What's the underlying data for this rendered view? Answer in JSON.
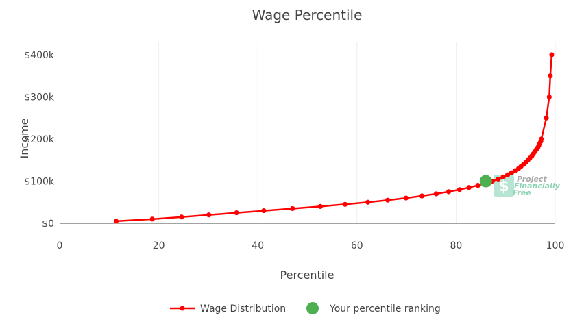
{
  "chart_data": {
    "type": "line",
    "title": "Wage Percentile",
    "xlabel": "Percentile",
    "ylabel": "Income",
    "xlim": [
      0,
      100
    ],
    "ylim": [
      0,
      400000
    ],
    "x_ticks": [
      0,
      20,
      40,
      60,
      80,
      100
    ],
    "y_ticks": [
      0,
      100000,
      200000,
      300000,
      400000
    ],
    "x_tick_labels": [
      "0",
      "20",
      "40",
      "60",
      "80",
      "100"
    ],
    "y_tick_labels": [
      "$0",
      "$100k",
      "$200k",
      "$300k",
      "$400k"
    ],
    "grid": "vertical",
    "legend_position": "bottom",
    "series": [
      {
        "name": "Wage Distribution",
        "color": "#ff0000",
        "points": [
          [
            11.4,
            5000
          ],
          [
            18.7,
            10000
          ],
          [
            24.6,
            15000
          ],
          [
            30.1,
            20000
          ],
          [
            35.7,
            25000
          ],
          [
            41.2,
            30000
          ],
          [
            47.0,
            35000
          ],
          [
            52.6,
            40000
          ],
          [
            57.6,
            45000
          ],
          [
            62.2,
            50000
          ],
          [
            66.2,
            55000
          ],
          [
            69.9,
            60000
          ],
          [
            73.1,
            65000
          ],
          [
            76.0,
            70000
          ],
          [
            78.5,
            75000
          ],
          [
            80.7,
            80000
          ],
          [
            82.6,
            85000
          ],
          [
            84.4,
            90000
          ],
          [
            86.0,
            95000
          ],
          [
            87.3,
            100000
          ],
          [
            88.5,
            105000
          ],
          [
            89.5,
            110000
          ],
          [
            90.4,
            115000
          ],
          [
            91.2,
            120000
          ],
          [
            91.9,
            125000
          ],
          [
            92.6,
            130000
          ],
          [
            93.1,
            135000
          ],
          [
            93.6,
            140000
          ],
          [
            94.1,
            145000
          ],
          [
            94.5,
            150000
          ],
          [
            94.9,
            155000
          ],
          [
            95.3,
            160000
          ],
          [
            95.6,
            165000
          ],
          [
            95.9,
            170000
          ],
          [
            96.2,
            175000
          ],
          [
            96.5,
            180000
          ],
          [
            96.7,
            185000
          ],
          [
            96.9,
            190000
          ],
          [
            97.1,
            195000
          ],
          [
            97.2,
            200000
          ],
          [
            98.2,
            250000
          ],
          [
            98.8,
            300000
          ],
          [
            99.0,
            350000
          ],
          [
            99.3,
            400000
          ]
        ]
      },
      {
        "name": "Your percentile ranking",
        "color": "#4caf50",
        "points": [
          [
            86.0,
            100000
          ]
        ]
      }
    ]
  },
  "watermark": {
    "lines": [
      "Project",
      "Financially",
      "Free"
    ],
    "icon": "dollar-leaf-logo"
  }
}
